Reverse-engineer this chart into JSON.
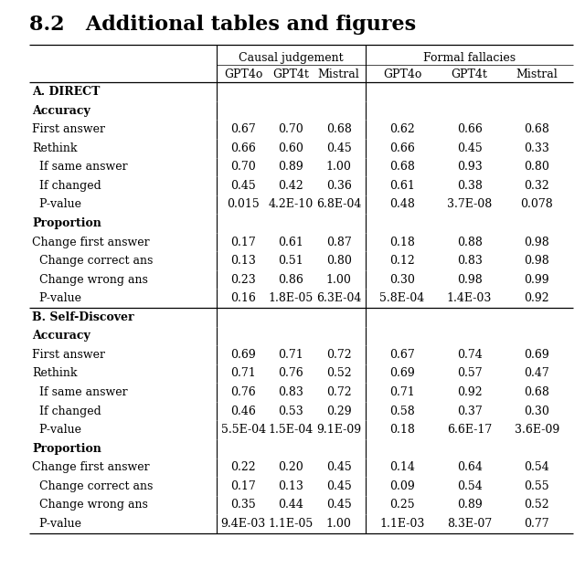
{
  "title": "8.2   Additional tables and figures",
  "col_headers": [
    "GPT4o",
    "GPT4t",
    "Mistral",
    "GPT4o",
    "GPT4t",
    "Mistral"
  ],
  "group_labels": [
    "Causal judgement",
    "Formal fallacies"
  ],
  "rows": [
    {
      "label": "A. DIRECT",
      "indent": 0,
      "bold": true,
      "values": [
        "",
        "",
        "",
        "",
        "",
        ""
      ],
      "section_label": "A"
    },
    {
      "label": "Accuracy",
      "indent": 0,
      "bold": true,
      "values": [
        "",
        "",
        "",
        "",
        "",
        ""
      ]
    },
    {
      "label": "First answer",
      "indent": 0,
      "bold": false,
      "values": [
        "0.67",
        "0.70",
        "0.68",
        "0.62",
        "0.66",
        "0.68"
      ]
    },
    {
      "label": "Rethink",
      "indent": 0,
      "bold": false,
      "values": [
        "0.66",
        "0.60",
        "0.45",
        "0.66",
        "0.45",
        "0.33"
      ]
    },
    {
      "label": "  If same answer",
      "indent": 0,
      "bold": false,
      "values": [
        "0.70",
        "0.89",
        "1.00",
        "0.68",
        "0.93",
        "0.80"
      ]
    },
    {
      "label": "  If changed",
      "indent": 0,
      "bold": false,
      "values": [
        "0.45",
        "0.42",
        "0.36",
        "0.61",
        "0.38",
        "0.32"
      ]
    },
    {
      "label": "  P-value",
      "indent": 0,
      "bold": false,
      "values": [
        "0.015",
        "4.2E-10",
        "6.8E-04",
        "0.48",
        "3.7E-08",
        "0.078"
      ]
    },
    {
      "label": "Proportion",
      "indent": 0,
      "bold": true,
      "values": [
        "",
        "",
        "",
        "",
        "",
        ""
      ]
    },
    {
      "label": "Change first answer",
      "indent": 0,
      "bold": false,
      "values": [
        "0.17",
        "0.61",
        "0.87",
        "0.18",
        "0.88",
        "0.98"
      ]
    },
    {
      "label": "  Change correct ans",
      "indent": 0,
      "bold": false,
      "values": [
        "0.13",
        "0.51",
        "0.80",
        "0.12",
        "0.83",
        "0.98"
      ]
    },
    {
      "label": "  Change wrong ans",
      "indent": 0,
      "bold": false,
      "values": [
        "0.23",
        "0.86",
        "1.00",
        "0.30",
        "0.98",
        "0.99"
      ]
    },
    {
      "label": "  P-value",
      "indent": 0,
      "bold": false,
      "values": [
        "0.16",
        "1.8E-05",
        "6.3E-04",
        "5.8E-04",
        "1.4E-03",
        "0.92"
      ]
    },
    {
      "label": "B. Self-Discover",
      "indent": 0,
      "bold": true,
      "values": [
        "",
        "",
        "",
        "",
        "",
        ""
      ],
      "section_label": "B"
    },
    {
      "label": "Accuracy",
      "indent": 0,
      "bold": true,
      "values": [
        "",
        "",
        "",
        "",
        "",
        ""
      ]
    },
    {
      "label": "First answer",
      "indent": 0,
      "bold": false,
      "values": [
        "0.69",
        "0.71",
        "0.72",
        "0.67",
        "0.74",
        "0.69"
      ]
    },
    {
      "label": "Rethink",
      "indent": 0,
      "bold": false,
      "values": [
        "0.71",
        "0.76",
        "0.52",
        "0.69",
        "0.57",
        "0.47"
      ]
    },
    {
      "label": "  If same answer",
      "indent": 0,
      "bold": false,
      "values": [
        "0.76",
        "0.83",
        "0.72",
        "0.71",
        "0.92",
        "0.68"
      ]
    },
    {
      "label": "  If changed",
      "indent": 0,
      "bold": false,
      "values": [
        "0.46",
        "0.53",
        "0.29",
        "0.58",
        "0.37",
        "0.30"
      ]
    },
    {
      "label": "  P-value",
      "indent": 0,
      "bold": false,
      "values": [
        "5.5E-04",
        "1.5E-04",
        "9.1E-09",
        "0.18",
        "6.6E-17",
        "3.6E-09"
      ]
    },
    {
      "label": "Proportion",
      "indent": 0,
      "bold": true,
      "values": [
        "",
        "",
        "",
        "",
        "",
        ""
      ]
    },
    {
      "label": "Change first answer",
      "indent": 0,
      "bold": false,
      "values": [
        "0.22",
        "0.20",
        "0.45",
        "0.14",
        "0.64",
        "0.54"
      ]
    },
    {
      "label": "  Change correct ans",
      "indent": 0,
      "bold": false,
      "values": [
        "0.17",
        "0.13",
        "0.45",
        "0.09",
        "0.54",
        "0.55"
      ]
    },
    {
      "label": "  Change wrong ans",
      "indent": 0,
      "bold": false,
      "values": [
        "0.35",
        "0.44",
        "0.45",
        "0.25",
        "0.89",
        "0.52"
      ]
    },
    {
      "label": "  P-value",
      "indent": 0,
      "bold": false,
      "values": [
        "9.4E-03",
        "1.1E-05",
        "1.00",
        "1.1E-03",
        "8.3E-07",
        "0.77"
      ]
    }
  ],
  "background_color": "#ffffff",
  "text_color": "#000000",
  "line_color": "#000000",
  "title_fontsize": 16,
  "header_fontsize": 9,
  "data_fontsize": 9,
  "fig_width": 6.4,
  "fig_height": 6.23,
  "dpi": 100
}
